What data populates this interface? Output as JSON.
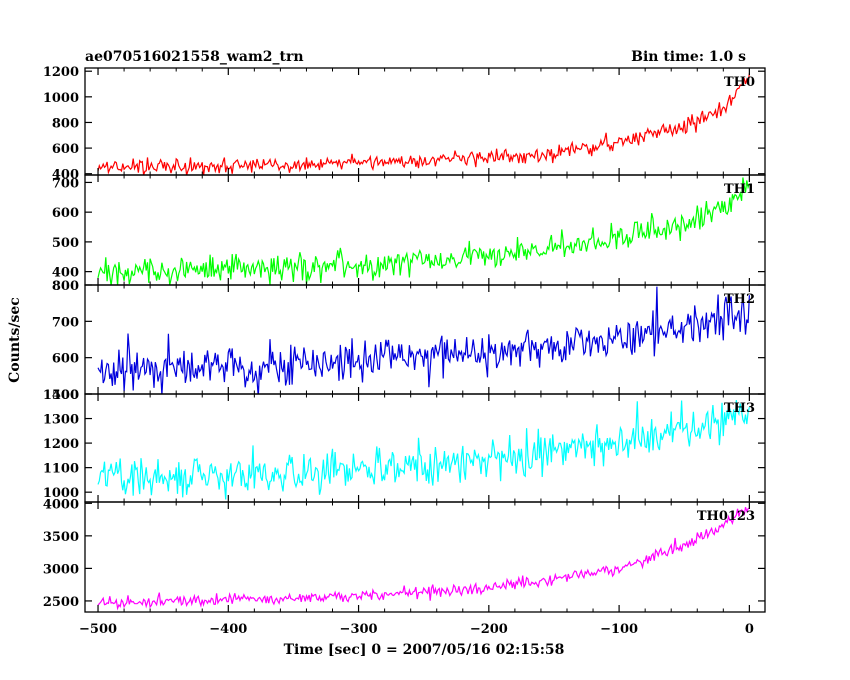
{
  "header": {
    "title": "ae070516021558_wam2_trn",
    "bin_time": "Bin time: 1.0 s"
  },
  "chart_data": {
    "type": "line",
    "xlabel": "Time [sec] 0 = 2007/05/16 02:15:58",
    "ylabel": "Counts/sec",
    "xlim": [
      -510,
      12
    ],
    "x_ticks": [
      -500,
      -400,
      -300,
      -200,
      -100,
      0
    ],
    "x_tick_labels": [
      "−500",
      "−400",
      "−300",
      "−200",
      "−100",
      "0"
    ],
    "x_start": -500,
    "x_end": 0,
    "step": 1,
    "panels": [
      {
        "name": "TH0",
        "color": "#ff0000",
        "ylim": [
          390,
          1225
        ],
        "yticks": [
          400,
          600,
          800,
          1000,
          1200
        ],
        "trend": [
          [
            -500,
            450
          ],
          [
            -400,
            465
          ],
          [
            -300,
            480
          ],
          [
            -200,
            520
          ],
          [
            -150,
            560
          ],
          [
            -100,
            640
          ],
          [
            -50,
            780
          ],
          [
            -20,
            900
          ],
          [
            0,
            1160
          ]
        ],
        "noise": 28,
        "spike_chance": 0.01,
        "spike_size": 60
      },
      {
        "name": "TH1",
        "color": "#00ff00",
        "ylim": [
          355,
          725
        ],
        "yticks": [
          400,
          500,
          600,
          700
        ],
        "trend": [
          [
            -500,
            400
          ],
          [
            -400,
            405
          ],
          [
            -300,
            420
          ],
          [
            -200,
            455
          ],
          [
            -100,
            510
          ],
          [
            -50,
            560
          ],
          [
            -20,
            620
          ],
          [
            0,
            690
          ]
        ],
        "noise": 22,
        "spike_chance": 0.015,
        "spike_size": 55
      },
      {
        "name": "TH2",
        "color": "#0000dd",
        "ylim": [
          500,
          800
        ],
        "yticks": [
          500,
          600,
          700,
          800
        ],
        "trend": [
          [
            -500,
            560
          ],
          [
            -400,
            572
          ],
          [
            -300,
            590
          ],
          [
            -200,
            612
          ],
          [
            -100,
            650
          ],
          [
            -50,
            690
          ],
          [
            0,
            730
          ]
        ],
        "noise": 26,
        "spike_chance": 0.02,
        "spike_size": 55
      },
      {
        "name": "TH3",
        "color": "#00ffff",
        "ylim": [
          960,
          1400
        ],
        "yticks": [
          1000,
          1100,
          1200,
          1300,
          1400
        ],
        "trend": [
          [
            -500,
            1060
          ],
          [
            -400,
            1070
          ],
          [
            -300,
            1090
          ],
          [
            -200,
            1130
          ],
          [
            -100,
            1200
          ],
          [
            -50,
            1260
          ],
          [
            0,
            1320
          ]
        ],
        "noise": 38,
        "spike_chance": 0.02,
        "spike_size": 80
      },
      {
        "name": "TH0123",
        "color": "#ff00ff",
        "ylim": [
          2330,
          4020
        ],
        "yticks": [
          2500,
          3000,
          3500,
          4000
        ],
        "trend": [
          [
            -500,
            2480
          ],
          [
            -400,
            2520
          ],
          [
            -300,
            2580
          ],
          [
            -200,
            2700
          ],
          [
            -100,
            3000
          ],
          [
            -50,
            3350
          ],
          [
            -20,
            3650
          ],
          [
            0,
            3950
          ]
        ],
        "noise": 45,
        "spike_chance": 0.008,
        "spike_size": 100
      }
    ]
  }
}
